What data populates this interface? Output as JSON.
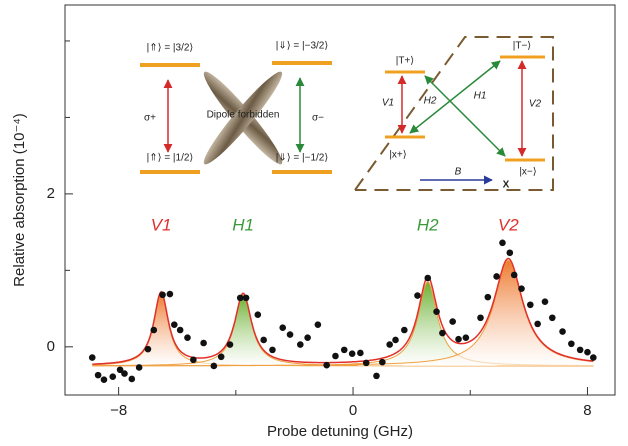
{
  "chart_data": {
    "type": "scatter",
    "xlabel": "Probe detuning (GHz)",
    "ylabel": "Relative absorption (10⁻⁴)",
    "xlim": [
      -9.83,
      8.94
    ],
    "ylim": [
      -0.63,
      4.47
    ],
    "xticks": [
      {
        "value": -8,
        "label": "−8"
      },
      0,
      8
    ],
    "xminorticks": [
      -4,
      4
    ],
    "yticks": [
      0,
      2
    ],
    "yminorticks": [
      1,
      3,
      4
    ],
    "color": "#111111",
    "fit_color": "#e0302a",
    "component_color": "#f0a040",
    "baseline": -0.25,
    "x": [
      -8.9,
      -8.7,
      -8.5,
      -8.2,
      -7.95,
      -7.8,
      -7.55,
      -7.3,
      -7.0,
      -6.8,
      -6.5,
      -6.25,
      -6.1,
      -5.9,
      -5.65,
      -5.45,
      -5.1,
      -4.75,
      -4.5,
      -4.2,
      -3.85,
      -3.65,
      -3.25,
      -3.05,
      -2.75,
      -2.4,
      -2.15,
      -1.8,
      -1.55,
      -1.2,
      -0.9,
      -0.6,
      -0.3,
      -0.03,
      0.25,
      0.45,
      0.8,
      1.0,
      1.25,
      1.45,
      1.75,
      2.2,
      2.55,
      2.85,
      3.05,
      3.4,
      3.6,
      3.85,
      4.35,
      4.6,
      4.9,
      5.1,
      5.35,
      5.5,
      5.75,
      6.05,
      6.3,
      6.55,
      6.8,
      7.15,
      7.45,
      7.75,
      8.0,
      8.2
    ],
    "values": [
      -0.14,
      -0.37,
      -0.43,
      -0.39,
      -0.3,
      -0.35,
      -0.42,
      -0.27,
      -0.03,
      0.22,
      0.68,
      0.69,
      0.29,
      0.22,
      0.12,
      -0.17,
      0.05,
      -0.25,
      -0.13,
      0.03,
      0.64,
      0.64,
      0.42,
      0.09,
      -0.04,
      0.25,
      0.16,
      0.03,
      0.12,
      0.29,
      -0.24,
      -0.12,
      -0.04,
      -0.09,
      -0.08,
      -0.21,
      -0.38,
      -0.2,
      0.03,
      0.09,
      0.22,
      0.67,
      0.9,
      0.46,
      0.18,
      0.33,
      0.1,
      0.12,
      0.38,
      0.65,
      0.92,
      1.36,
      1.23,
      0.94,
      0.76,
      0.55,
      0.3,
      0.59,
      0.38,
      0.2,
      0.04,
      -0.04,
      -0.07,
      -0.14
    ],
    "peaks": [
      {
        "name": "V1",
        "center": -6.55,
        "amplitude": 0.95,
        "width": 0.3,
        "color": "#e0302a",
        "fill": "#ee7a30"
      },
      {
        "name": "H1",
        "center": -3.75,
        "amplitude": 0.93,
        "width": 0.35,
        "color": "#3a9a3a",
        "fill": "#6ab030"
      },
      {
        "name": "H2",
        "center": 2.55,
        "amplitude": 1.1,
        "width": 0.4,
        "color": "#3a9a3a",
        "fill": "#6ab030"
      },
      {
        "name": "V2",
        "center": 5.3,
        "amplitude": 1.38,
        "width": 0.6,
        "color": "#e0302a",
        "fill": "#ee7a30"
      }
    ],
    "inset_texts": [
      "|⇑⟩ = |3/2⟩",
      "|⇑⟩ = |1/2⟩",
      "|⇓⟩ = |−3/2⟩",
      "|⇓⟩ = |−1/2⟩",
      "σ+",
      "σ−",
      "Dipole forbidden",
      "|T+⟩",
      "|T−⟩",
      "|x+⟩",
      "|x−⟩",
      "V1",
      "V2",
      "H2",
      "H1",
      "B",
      "X"
    ]
  }
}
